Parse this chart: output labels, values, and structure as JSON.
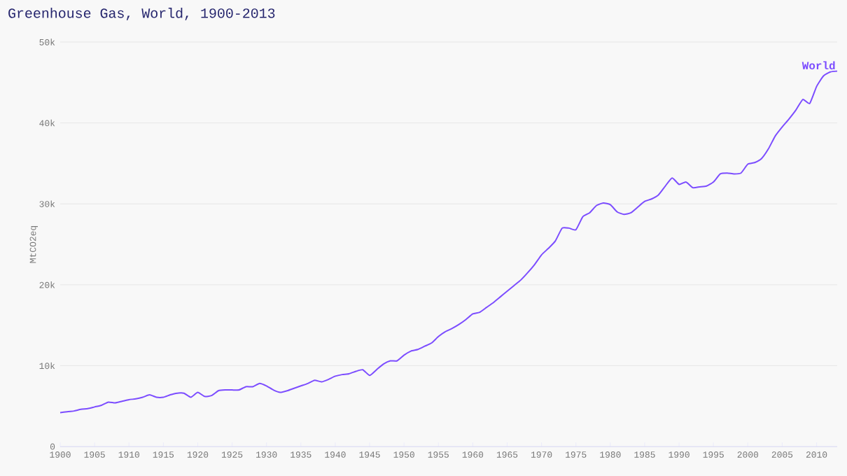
{
  "chart_data": {
    "type": "line",
    "title": "Greenhouse Gas, World, 1900-2013",
    "ylabel": "MtCO2eq",
    "x": [
      1900,
      1901,
      1902,
      1903,
      1904,
      1905,
      1906,
      1907,
      1908,
      1909,
      1910,
      1911,
      1912,
      1913,
      1914,
      1915,
      1916,
      1917,
      1918,
      1919,
      1920,
      1921,
      1922,
      1923,
      1924,
      1925,
      1926,
      1927,
      1928,
      1929,
      1930,
      1931,
      1932,
      1933,
      1934,
      1935,
      1936,
      1937,
      1938,
      1939,
      1940,
      1941,
      1942,
      1943,
      1944,
      1945,
      1946,
      1947,
      1948,
      1949,
      1950,
      1951,
      1952,
      1953,
      1954,
      1955,
      1956,
      1957,
      1958,
      1959,
      1960,
      1961,
      1962,
      1963,
      1964,
      1965,
      1966,
      1967,
      1968,
      1969,
      1970,
      1971,
      1972,
      1973,
      1974,
      1975,
      1976,
      1977,
      1978,
      1979,
      1980,
      1981,
      1982,
      1983,
      1984,
      1985,
      1986,
      1987,
      1988,
      1989,
      1990,
      1991,
      1992,
      1993,
      1994,
      1995,
      1996,
      1997,
      1998,
      1999,
      2000,
      2001,
      2002,
      2003,
      2004,
      2005,
      2006,
      2007,
      2008,
      2009,
      2010,
      2011,
      2012,
      2013
    ],
    "series": [
      {
        "name": "World",
        "color": "#7c4dff",
        "values": [
          4200,
          4300,
          4400,
          4600,
          4700,
          4900,
          5100,
          5500,
          5400,
          5600,
          5800,
          5900,
          6100,
          6400,
          6100,
          6100,
          6400,
          6600,
          6600,
          6100,
          6700,
          6200,
          6300,
          6900,
          7000,
          7000,
          7000,
          7400,
          7400,
          7800,
          7500,
          7000,
          6700,
          6900,
          7200,
          7500,
          7800,
          8200,
          8000,
          8300,
          8700,
          8900,
          9000,
          9300,
          9500,
          8800,
          9500,
          10200,
          10600,
          10600,
          11300,
          11800,
          12000,
          12400,
          12800,
          13600,
          14200,
          14600,
          15100,
          15700,
          16400,
          16600,
          17200,
          17800,
          18500,
          19200,
          19900,
          20600,
          21500,
          22500,
          23700,
          24500,
          25400,
          27000,
          27000,
          26800,
          28400,
          28900,
          29800,
          30100,
          29900,
          29000,
          28700,
          28900,
          29600,
          30300,
          30600,
          31100,
          32200,
          33200,
          32400,
          32700,
          32000,
          32100,
          32200,
          32700,
          33700,
          33800,
          33700,
          33800,
          34900,
          35100,
          35600,
          36800,
          38400,
          39500,
          40500,
          41600,
          42900,
          42400,
          44500,
          45800,
          46300,
          46400
        ]
      }
    ],
    "xlim": [
      1900,
      2013
    ],
    "xticks": [
      1900,
      1905,
      1910,
      1915,
      1920,
      1925,
      1930,
      1935,
      1940,
      1945,
      1950,
      1955,
      1960,
      1965,
      1970,
      1975,
      1980,
      1985,
      1990,
      1995,
      2000,
      2005,
      2010
    ],
    "ylim": [
      0,
      50000
    ],
    "yticks": [
      {
        "value": 0,
        "label": "0"
      },
      {
        "value": 10000,
        "label": "10k"
      },
      {
        "value": 20000,
        "label": "20k"
      },
      {
        "value": 30000,
        "label": "30k"
      },
      {
        "value": 40000,
        "label": "40k"
      },
      {
        "value": 50000,
        "label": "50k"
      }
    ],
    "grid": "y",
    "legend": false,
    "marker": "none",
    "line_style": "solid"
  }
}
